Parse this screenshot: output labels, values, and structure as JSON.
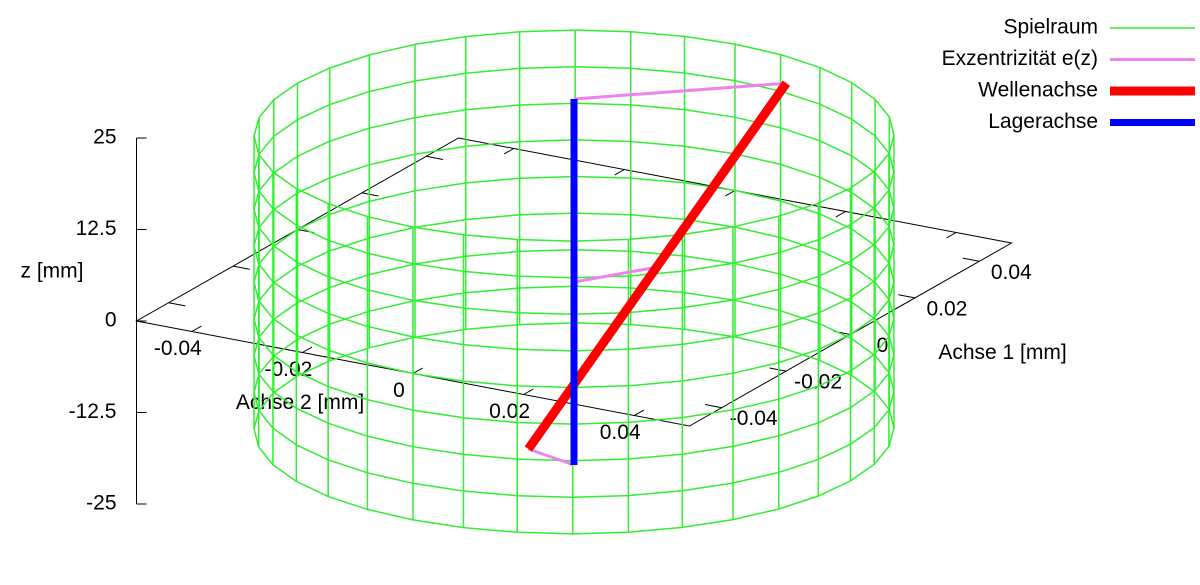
{
  "chart_data": {
    "type": "line3d",
    "xlabel": "Achse 1 [mm]",
    "ylabel": "Achse 2 [mm]",
    "zlabel": "z [mm]",
    "xlim": [
      -0.05,
      0.05
    ],
    "ylim": [
      -0.05,
      0.05
    ],
    "zlim": [
      -25,
      25
    ],
    "xticks": [
      -0.04,
      -0.02,
      0,
      0.02,
      0.04
    ],
    "yticks": [
      -0.04,
      -0.02,
      0,
      0.02,
      0.04
    ],
    "zticks": [
      -25,
      -12.5,
      0,
      12.5,
      25
    ],
    "legend": "top-right",
    "series": [
      {
        "name": "Spielraum",
        "type": "cylinder",
        "color": "#33ee33",
        "width": 1.5,
        "radius": 0.05,
        "z": [
          -20,
          -15,
          -10,
          -5,
          0,
          5,
          10,
          15,
          20
        ]
      },
      {
        "name": "Exzentrizität e(z)",
        "type": "line",
        "color": "#ee82ee",
        "width": 3,
        "x": [
          0,
          0.003,
          null,
          0,
          0.013,
          null,
          0,
          0.023
        ],
        "y": [
          0,
          -0.01,
          null,
          0,
          0.008,
          null,
          0,
          0.025
        ],
        "z": [
          -25,
          -25,
          null,
          0,
          0,
          null,
          25,
          25
        ]
      },
      {
        "name": "Wellenachse",
        "type": "line",
        "color": "#ff0000",
        "width": 9,
        "x": [
          0.003,
          0.023
        ],
        "y": [
          -0.01,
          0.025
        ],
        "z": [
          -25,
          25
        ]
      },
      {
        "name": "Lagerachse",
        "type": "line",
        "color": "#0000ff",
        "width": 7,
        "x": [
          0,
          0
        ],
        "y": [
          0,
          0
        ],
        "z": [
          -25,
          25
        ]
      }
    ]
  }
}
